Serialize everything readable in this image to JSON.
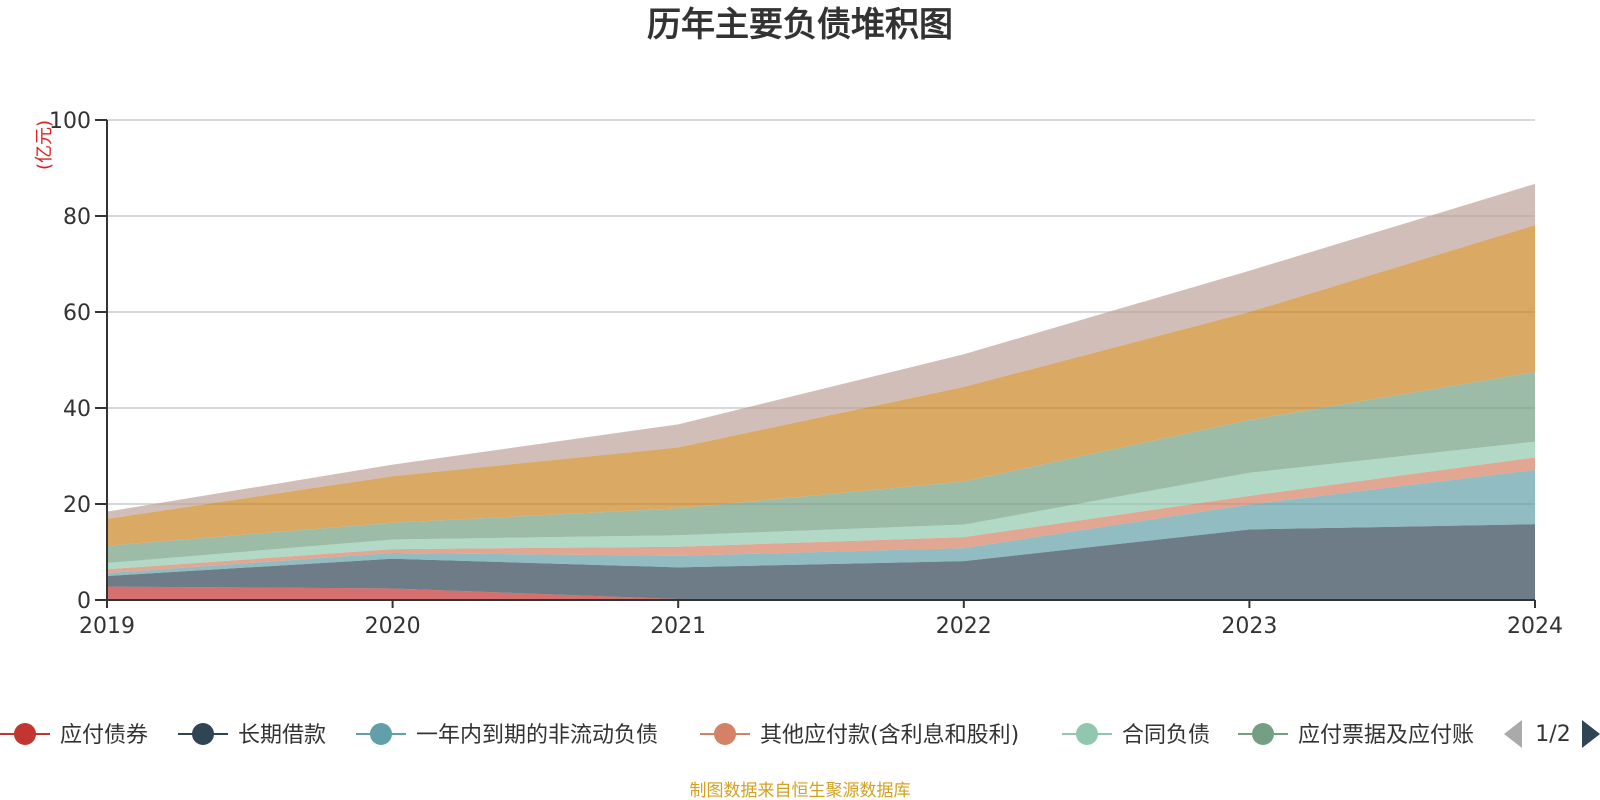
{
  "chart_data": {
    "type": "area",
    "stacked": true,
    "title": "历年主要负债堆积图",
    "ylabel": "(亿元)",
    "xlabel": "",
    "ylim": [
      0,
      100
    ],
    "yticks": [
      0,
      20,
      40,
      60,
      80,
      100
    ],
    "categories": [
      "2019",
      "2020",
      "2021",
      "2022",
      "2023",
      "2024"
    ],
    "grid": true,
    "series": [
      {
        "name": "应付债券",
        "color": "#c23531",
        "values": [
          2.8,
          2.4,
          0.2,
          0.2,
          0.2,
          0.2
        ]
      },
      {
        "name": "长期借款",
        "color": "#2f4554",
        "values": [
          2.2,
          6.2,
          6.6,
          7.9,
          14.5,
          15.6
        ]
      },
      {
        "name": "一年内到期的非流动负债",
        "color": "#61a0a8",
        "values": [
          0.6,
          1.2,
          2.4,
          2.7,
          5.2,
          11.3
        ]
      },
      {
        "name": "其他应付款(含利息和股利)",
        "color": "#d48265",
        "values": [
          0.8,
          0.8,
          1.9,
          2.3,
          1.8,
          2.6
        ]
      },
      {
        "name": "合同负债",
        "color": "#91c7ae",
        "values": [
          1.3,
          2.0,
          2.4,
          2.6,
          4.8,
          3.3
        ]
      },
      {
        "name": "应付票据及应付账款",
        "color": "#749f83",
        "values": [
          3.6,
          3.5,
          5.6,
          9.0,
          11.0,
          14.5
        ]
      },
      {
        "name": "",
        "color": "#ca8622",
        "values": [
          5.6,
          9.7,
          12.7,
          19.7,
          22.5,
          30.6
        ]
      },
      {
        "name": "",
        "color": "#bda29a",
        "values": [
          1.5,
          2.4,
          4.8,
          6.8,
          8.6,
          8.6
        ]
      }
    ]
  },
  "legend": {
    "page": "1/2",
    "visible_items": [
      {
        "label": "应付债券",
        "color": "#c23531"
      },
      {
        "label": "长期借款",
        "color": "#2f4554"
      },
      {
        "label": "一年内到期的非流动负债",
        "color": "#61a0a8"
      },
      {
        "label": "其他应付款(含利息和股利)",
        "color": "#d48265"
      },
      {
        "label": "合同负债",
        "color": "#91c7ae"
      },
      {
        "label": "应付票据及应付账",
        "color": "#749f83"
      }
    ]
  },
  "source_note": "制图数据来自恒生聚源数据库"
}
